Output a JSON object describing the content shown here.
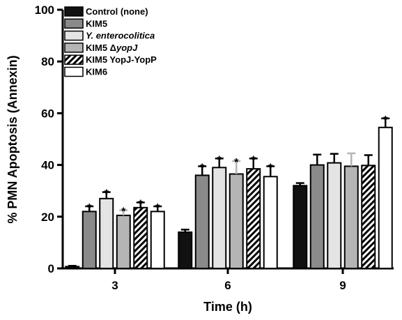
{
  "chart_data": {
    "type": "bar",
    "xlabel": "Time (h)",
    "ylabel": "% PMN Apoptosis (Annexin)",
    "ylim": [
      0,
      100
    ],
    "yticks": [
      0,
      20,
      40,
      60,
      80,
      100
    ],
    "categories": [
      "3",
      "6",
      "9"
    ],
    "legend_position": "top-left",
    "series": [
      {
        "name": "Control (none)",
        "style": "solid-black",
        "fill": "#111111",
        "values": [
          0.7,
          14.0,
          32.0
        ],
        "errors": [
          0.3,
          1.0,
          1.0
        ],
        "significant": [
          false,
          false,
          false
        ]
      },
      {
        "name": "KIM5",
        "style": "solid-dark-gray",
        "fill": "#8a8a8a",
        "values": [
          22.0,
          36.0,
          40.0
        ],
        "errors": [
          2.0,
          3.5,
          4.0
        ],
        "significant": [
          true,
          true,
          false
        ]
      },
      {
        "name": "Y. enterocolitica",
        "style": "light-gray",
        "fill": "#e4e4e4",
        "values": [
          27.0,
          39.0,
          40.8
        ],
        "errors": [
          2.5,
          3.5,
          3.5
        ],
        "significant": [
          true,
          true,
          false
        ]
      },
      {
        "name": "KIM5 ΔyopJ",
        "style": "mid-gray",
        "fill": "#b5b5b5",
        "values": [
          20.5,
          36.5,
          39.5
        ],
        "errors": [
          2.0,
          5.0,
          5.0
        ],
        "significant": [
          true,
          true,
          false
        ]
      },
      {
        "name": "KIM5 YopJ-YopP",
        "style": "hatched",
        "fill": "#000000",
        "values": [
          23.5,
          38.5,
          39.8
        ],
        "errors": [
          2.0,
          4.0,
          4.0
        ],
        "significant": [
          true,
          true,
          false
        ]
      },
      {
        "name": "KIM6",
        "style": "white",
        "fill": "#ffffff",
        "values": [
          22.0,
          35.5,
          54.5
        ],
        "errors": [
          2.0,
          4.0,
          3.5
        ],
        "significant": [
          true,
          true,
          true
        ]
      }
    ],
    "significance_marker": "*"
  }
}
